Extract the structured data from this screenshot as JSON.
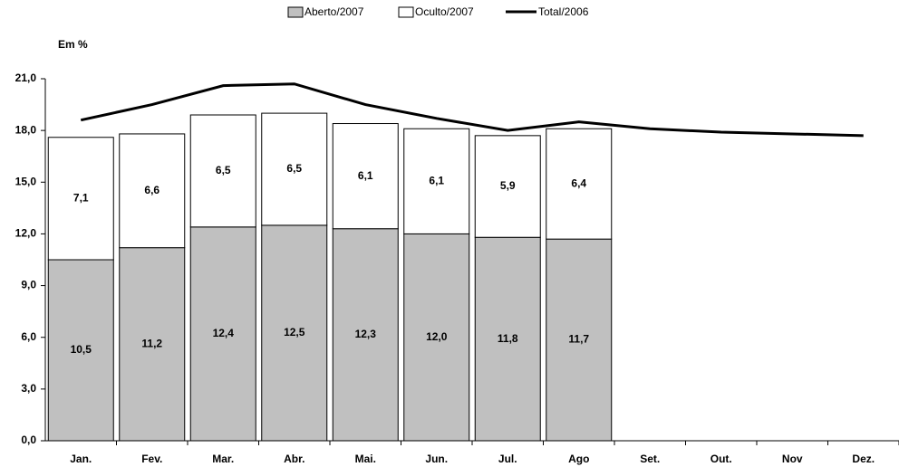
{
  "chart_data": {
    "type": "bar",
    "stacked": true,
    "y_label": "Em %",
    "categories": [
      "Jan.",
      "Fev.",
      "Mar.",
      "Abr.",
      "Mai.",
      "Jun.",
      "Jul.",
      "Ago",
      "Set.",
      "Out.",
      "Nov",
      "Dez."
    ],
    "series": [
      {
        "name": "Aberto/2007",
        "type": "bar",
        "color": "#c0c0c0",
        "values": [
          10.5,
          11.2,
          12.4,
          12.5,
          12.3,
          12.0,
          11.8,
          11.7,
          null,
          null,
          null,
          null
        ],
        "value_labels": [
          "10,5",
          "11,2",
          "12,4",
          "12,5",
          "12,3",
          "12,0",
          "11,8",
          "11,7",
          null,
          null,
          null,
          null
        ]
      },
      {
        "name": "Oculto/2007",
        "type": "bar",
        "color": "#ffffff",
        "values": [
          7.1,
          6.6,
          6.5,
          6.5,
          6.1,
          6.1,
          5.9,
          6.4,
          null,
          null,
          null,
          null
        ],
        "value_labels": [
          "7,1",
          "6,6",
          "6,5",
          "6,5",
          "6,1",
          "6,1",
          "5,9",
          "6,4",
          null,
          null,
          null,
          null
        ]
      },
      {
        "name": "Total/2006",
        "type": "line",
        "color": "#000000",
        "values": [
          18.6,
          19.5,
          20.6,
          20.7,
          19.5,
          18.7,
          18.0,
          18.5,
          18.1,
          17.9,
          17.8,
          17.7
        ]
      }
    ],
    "ylim": [
      0,
      21
    ],
    "yticks": [
      {
        "value": 0,
        "label": "0,0"
      },
      {
        "value": 3,
        "label": "3,0"
      },
      {
        "value": 6,
        "label": "6,0"
      },
      {
        "value": 9,
        "label": "9,0"
      },
      {
        "value": 12,
        "label": "12,0"
      },
      {
        "value": 15,
        "label": "15,0"
      },
      {
        "value": 18,
        "label": "18,0"
      },
      {
        "value": 21,
        "label": "21,0"
      }
    ],
    "legend": "top"
  }
}
